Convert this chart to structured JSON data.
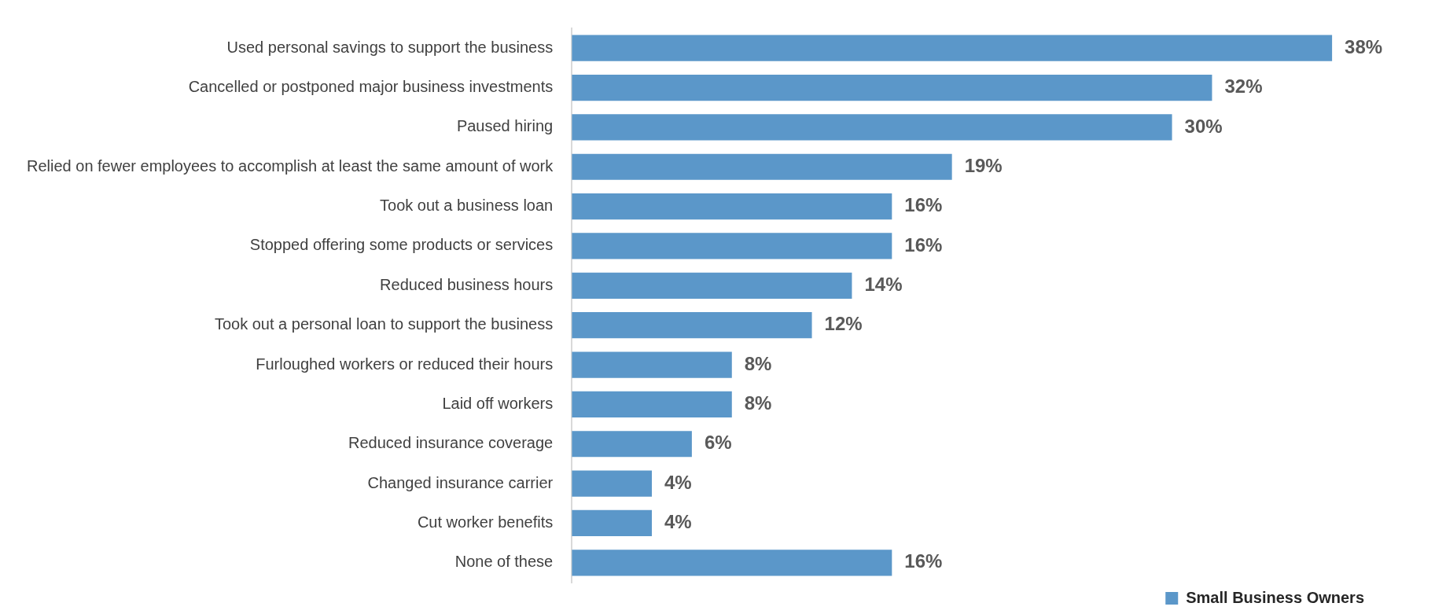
{
  "chart_data": {
    "type": "bar",
    "orientation": "horizontal",
    "categories": [
      "Used personal savings to support the business",
      "Cancelled or postponed major business investments",
      "Paused hiring",
      "Relied on fewer employees to accomplish at least the same amount of work",
      "Took out a business loan",
      "Stopped offering some products or services",
      "Reduced business hours",
      "Took out a personal loan to support the business",
      "Furloughed workers or reduced their hours",
      "Laid off workers",
      "Reduced insurance coverage",
      "Changed insurance carrier",
      "Cut worker benefits",
      "None of these"
    ],
    "series": [
      {
        "name": "Small Business Owners",
        "color": "#5b97c9",
        "values": [
          38,
          32,
          30,
          19,
          16,
          16,
          14,
          12,
          8,
          8,
          6,
          4,
          4,
          16
        ],
        "value_labels": [
          "38%",
          "32%",
          "30%",
          "19%",
          "16%",
          "16%",
          "14%",
          "12%",
          "8%",
          "8%",
          "6%",
          "4%",
          "4%",
          "16%"
        ]
      }
    ],
    "legend": "bottom right",
    "grid": false
  }
}
